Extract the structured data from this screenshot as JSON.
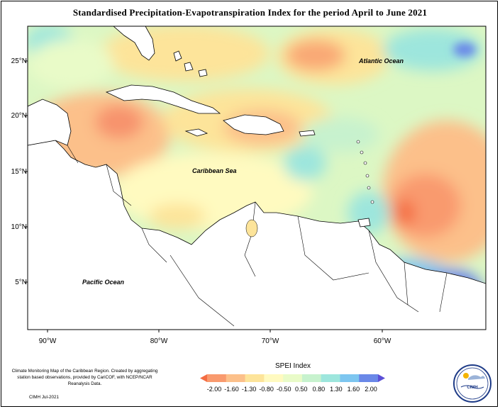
{
  "title": "Standardised Precipitation-Evapotranspiration Index for the period April to June 2021",
  "map": {
    "lat_labels": [
      "25°N",
      "20°N",
      "15°N",
      "10°N",
      "5°N"
    ],
    "lon_labels": [
      "90°W",
      "80°W",
      "70°W",
      "60°W"
    ],
    "ocean_labels": {
      "atlantic": "Atlantic Ocean",
      "caribbean": "Caribbean Sea",
      "pacific": "Pacific Ocean"
    }
  },
  "legend": {
    "title": "SPEI Index",
    "ticks": [
      "-2.00",
      "-1.60",
      "-1.30",
      "-0.80",
      "-0.50",
      "0.50",
      "0.80",
      "1.30",
      "1.60",
      "2.00"
    ],
    "colors": [
      "#f46d43",
      "#f99a6e",
      "#fcc08a",
      "#fde49a",
      "#fffac0",
      "#e9fbc8",
      "#c7f2ce",
      "#9de6dd",
      "#7dc6f0",
      "#6a88e8",
      "#5b4fd6"
    ]
  },
  "credit": {
    "text": "Climate Monitoring Map of the Caribbean Region. Created by aggregating station based observations, provided by CariCOF, with NCEP/NCAR Reanalysis Data.",
    "date": "CIMH Jul-2021"
  },
  "logo": {
    "name": "cimh-logo-icon",
    "text": "CIMH"
  }
}
